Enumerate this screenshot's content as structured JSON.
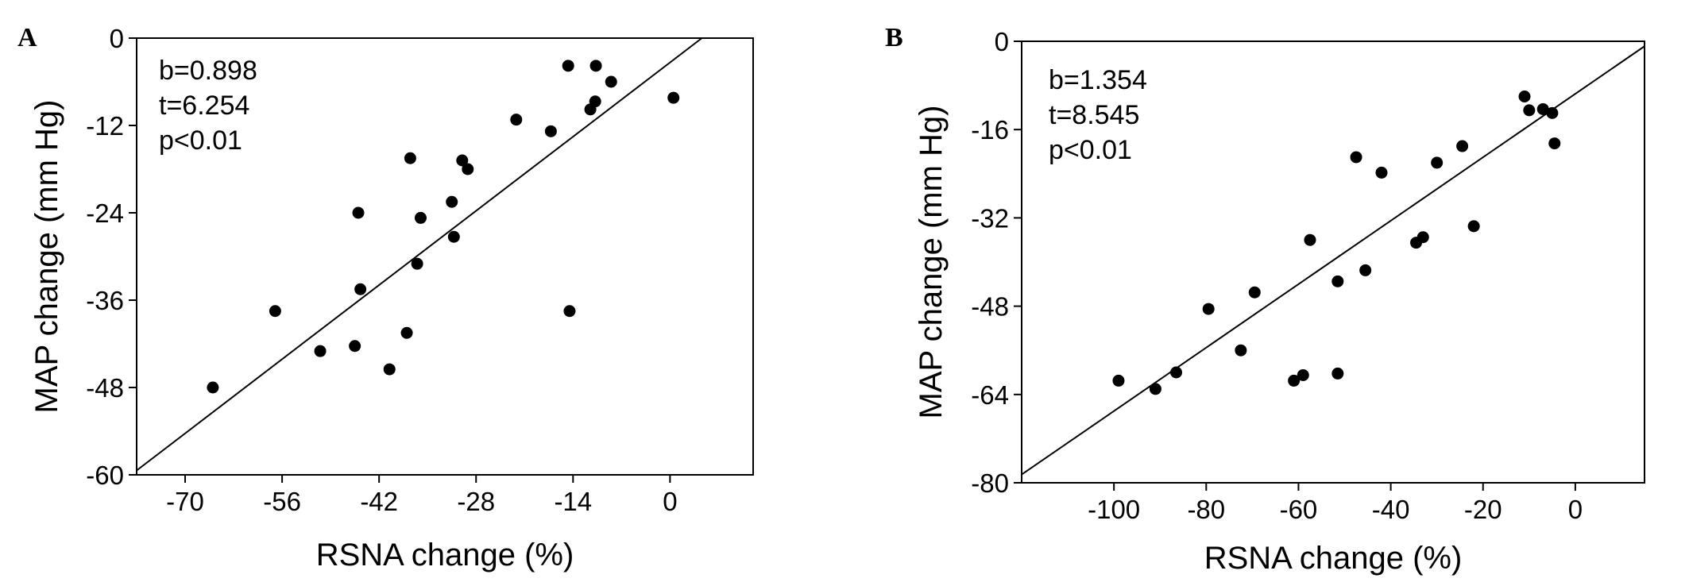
{
  "chart_data": [
    {
      "type": "scatter",
      "panel": "A",
      "xlabel": "RSNA  change (%)",
      "ylabel": "MAP  change (mm Hg)",
      "xlim": [
        -77,
        12
      ],
      "ylim": [
        -60,
        0
      ],
      "xticks": [
        -70,
        -56,
        -42,
        -28,
        -14,
        0
      ],
      "yticks": [
        0,
        -12,
        -24,
        -36,
        -48,
        -60
      ],
      "annotations": [
        "b=0.898",
        "t=6.254",
        "p<0.01"
      ],
      "regression": {
        "slope": 0.898,
        "x_start": -77,
        "y_start": -59.4,
        "x_end": 4.6,
        "y_end": 0
      },
      "points": [
        {
          "x": -66,
          "y": -48
        },
        {
          "x": -57,
          "y": -37.5
        },
        {
          "x": -50.5,
          "y": -43
        },
        {
          "x": -45.5,
          "y": -42.3
        },
        {
          "x": -45,
          "y": -24
        },
        {
          "x": -44.7,
          "y": -34.5
        },
        {
          "x": -40.5,
          "y": -45.5
        },
        {
          "x": -38,
          "y": -40.5
        },
        {
          "x": -37.5,
          "y": -16.5
        },
        {
          "x": -36.5,
          "y": -31
        },
        {
          "x": -36,
          "y": -24.7
        },
        {
          "x": -31.5,
          "y": -22.5
        },
        {
          "x": -31.2,
          "y": -27.3
        },
        {
          "x": -30,
          "y": -16.8
        },
        {
          "x": -29.2,
          "y": -18
        },
        {
          "x": -22.2,
          "y": -11.2
        },
        {
          "x": -17.2,
          "y": -12.8
        },
        {
          "x": -14.5,
          "y": -37.5
        },
        {
          "x": -14.7,
          "y": -3.8
        },
        {
          "x": -11.5,
          "y": -9.8
        },
        {
          "x": -10.8,
          "y": -8.7
        },
        {
          "x": -10.7,
          "y": -3.8
        },
        {
          "x": -8.5,
          "y": -6
        },
        {
          "x": 0.5,
          "y": -8.2
        }
      ]
    },
    {
      "type": "scatter",
      "panel": "B",
      "xlabel": "RSNA  change (%)",
      "ylabel": "MAP  change (mm Hg)",
      "xlim": [
        -120,
        15
      ],
      "ylim": [
        -80,
        0
      ],
      "xticks": [
        -100,
        -80,
        -60,
        -40,
        -20,
        0
      ],
      "yticks": [
        0,
        -16,
        -32,
        -48,
        -64,
        -80
      ],
      "annotations": [
        "b=1.354",
        "t=8.545",
        "p<0.01"
      ],
      "regression": {
        "slope": 1.354,
        "x_start": -120,
        "y_start": -78.5,
        "x_end": 15,
        "y_end": -0.9
      },
      "points": [
        {
          "x": -99,
          "y": -61.5
        },
        {
          "x": -91,
          "y": -63
        },
        {
          "x": -86.5,
          "y": -60
        },
        {
          "x": -79.5,
          "y": -48.5
        },
        {
          "x": -72.5,
          "y": -56
        },
        {
          "x": -69.5,
          "y": -45.5
        },
        {
          "x": -61,
          "y": -61.5
        },
        {
          "x": -59,
          "y": -60.5
        },
        {
          "x": -57.5,
          "y": -36
        },
        {
          "x": -51.5,
          "y": -43.5
        },
        {
          "x": -51.5,
          "y": -60.2
        },
        {
          "x": -47.5,
          "y": -21
        },
        {
          "x": -45.5,
          "y": -41.5
        },
        {
          "x": -42,
          "y": -23.8
        },
        {
          "x": -34.5,
          "y": -36.5
        },
        {
          "x": -33,
          "y": -35.5
        },
        {
          "x": -30,
          "y": -22
        },
        {
          "x": -24.5,
          "y": -19
        },
        {
          "x": -22,
          "y": -33.5
        },
        {
          "x": -11,
          "y": -10
        },
        {
          "x": -10,
          "y": -12.5
        },
        {
          "x": -7,
          "y": -12.3
        },
        {
          "x": -5,
          "y": -13
        },
        {
          "x": -4.5,
          "y": -18.5
        }
      ]
    }
  ]
}
